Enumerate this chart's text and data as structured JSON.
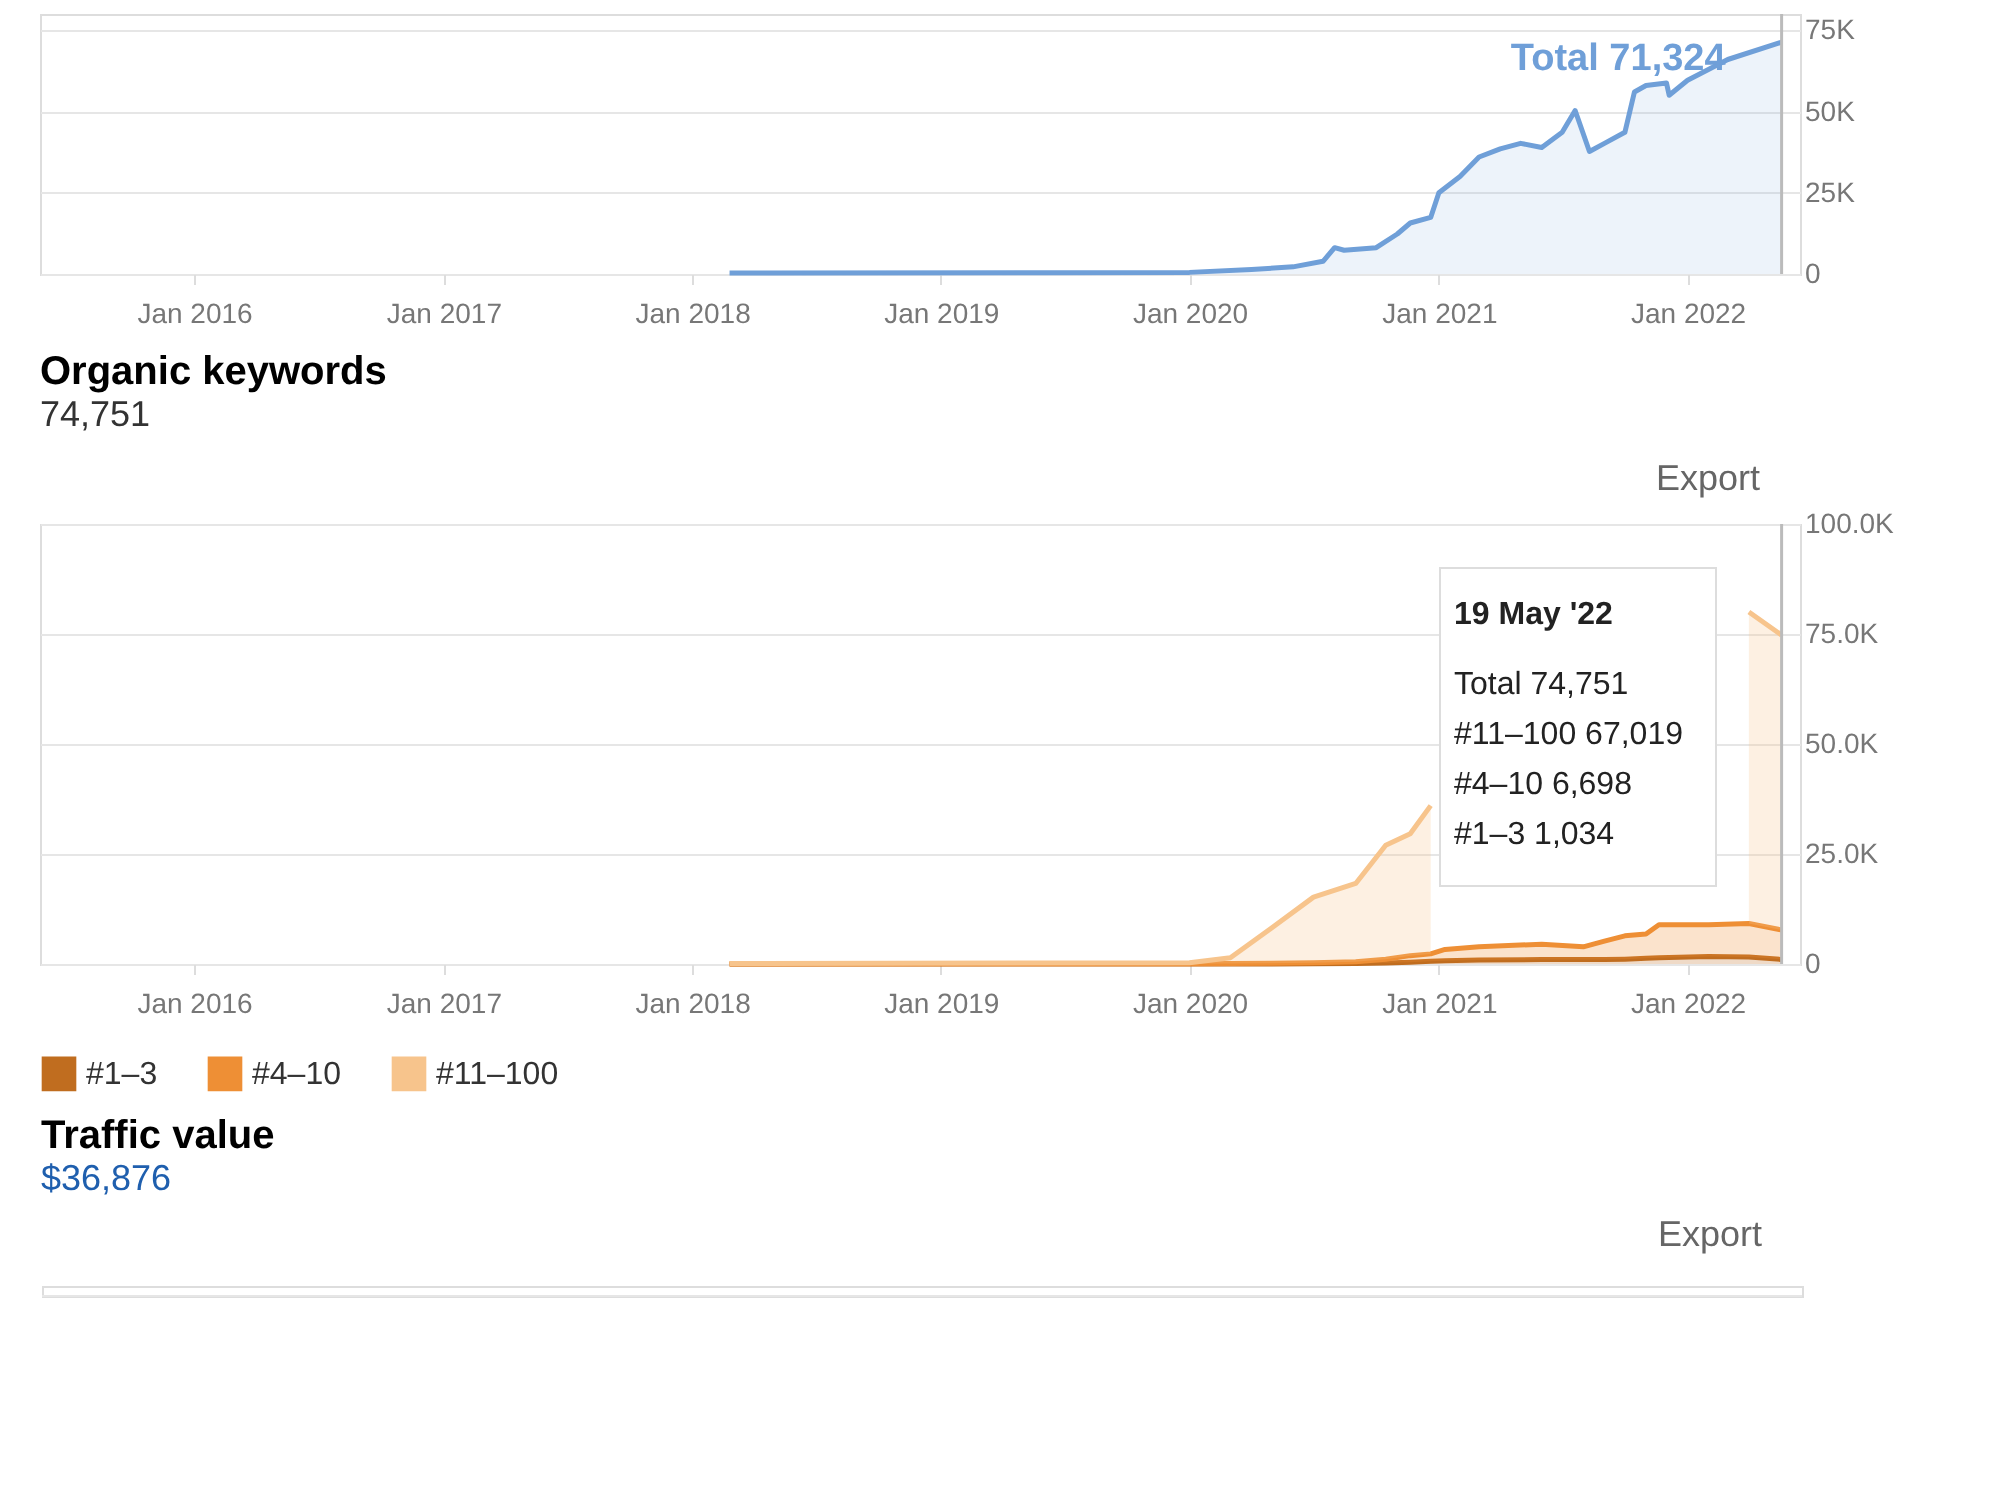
{
  "chart_data": [
    {
      "type": "area",
      "x": [
        "2018-02-25",
        "2019-06-01",
        "2020-01-01",
        "2020-04-01",
        "2020-06-01",
        "2020-07-15",
        "2020-08-01",
        "2020-08-15",
        "2020-10-01",
        "2020-11-01",
        "2020-11-20",
        "2020-12-20",
        "2021-01-01",
        "2021-02-01",
        "2021-03-01",
        "2021-04-01",
        "2021-05-01",
        "2021-06-01",
        "2021-07-01",
        "2021-07-20",
        "2021-08-10",
        "2021-09-01",
        "2021-10-01",
        "2021-10-15",
        "2021-11-01",
        "2021-12-01",
        "2021-12-05",
        "2022-01-01",
        "2022-03-01",
        "2022-05-19"
      ],
      "series": [
        {
          "color": "#6f9fd8",
          "values": [
            300,
            400,
            500,
            1400,
            2200,
            3900,
            8100,
            7300,
            8100,
            12300,
            15700,
            17400,
            25000,
            30000,
            36000,
            38500,
            40200,
            38900,
            43600,
            50300,
            37700,
            40200,
            43600,
            56000,
            58000,
            58800,
            55000,
            59600,
            66000,
            71324
          ]
        }
      ],
      "xlim": [
        "2015-05-20",
        "2022-06-15"
      ],
      "xticks": [
        {
          "value": "2016-01",
          "label": "Jan 2016"
        },
        {
          "value": "2017-01",
          "label": "Jan 2017"
        },
        {
          "value": "2018-01",
          "label": "Jan 2018"
        },
        {
          "value": "2019-01",
          "label": "Jan 2019"
        },
        {
          "value": "2020-01",
          "label": "Jan 2020"
        },
        {
          "value": "2021-01",
          "label": "Jan 2021"
        },
        {
          "value": "2022-01",
          "label": "Jan 2022"
        }
      ],
      "ylim": [
        0,
        80000
      ],
      "yticks": [
        0,
        {
          "value": 25000,
          "label": "25K"
        },
        {
          "value": 50000,
          "label": "50K"
        },
        {
          "value": 75000,
          "label": "75K"
        }
      ],
      "grid": "y",
      "ref_lines": [
        {
          "axis": "x",
          "value": "2022-05-19"
        }
      ],
      "annotations": [
        {
          "text": "Total 71,324",
          "x": "2022-05-19",
          "y": 71324
        }
      ]
    },
    {
      "type": "area",
      "title": "Organic keywords",
      "subtitle": "74,751",
      "stacked": true,
      "x": [
        "2018-02-25",
        "2020-01-01",
        "2020-03-01",
        "2020-05-01",
        "2020-07-01",
        "2020-09-01",
        "2020-10-15",
        "2020-11-20",
        "2020-12-20",
        "2021-01-10",
        "2021-03-01",
        "2021-06-01",
        "2021-08-01",
        "2021-09-01",
        "2021-10-01",
        "2021-11-01",
        "2021-11-20",
        "2022-02-01",
        "2022-04-01",
        "2022-05-19"
      ],
      "series": [
        {
          "name": "#1–3",
          "color": "#c06d1f",
          "values": [
            0,
            0,
            0,
            0,
            50,
            100,
            200,
            400,
            600,
            750,
            900,
            1000,
            1000,
            1000,
            1100,
            1300,
            1400,
            1700,
            1600,
            1034
          ]
        },
        {
          "name": "#4–10",
          "color": "#ee8f35",
          "values": [
            0,
            50,
            100,
            150,
            250,
            400,
            900,
            1500,
            1700,
            2550,
            3000,
            3500,
            2900,
            4200,
            5300,
            5500,
            7500,
            7200,
            7600,
            6698
          ]
        },
        {
          "name": "#11–100",
          "color": "#f7c48c",
          "values": [
            100,
            250,
            1300,
            8100,
            14900,
            17800,
            25900,
            27700,
            33700,
            null,
            null,
            null,
            null,
            null,
            null,
            null,
            null,
            null,
            70800,
            67019
          ]
        }
      ],
      "xlim": [
        "2015-05-20",
        "2022-06-15"
      ],
      "xticks": [
        {
          "value": "2016-01",
          "label": "Jan 2016"
        },
        {
          "value": "2017-01",
          "label": "Jan 2017"
        },
        {
          "value": "2018-01",
          "label": "Jan 2018"
        },
        {
          "value": "2019-01",
          "label": "Jan 2019"
        },
        {
          "value": "2020-01",
          "label": "Jan 2020"
        },
        {
          "value": "2021-01",
          "label": "Jan 2021"
        },
        {
          "value": "2022-01",
          "label": "Jan 2022"
        }
      ],
      "ylim": [
        0,
        100000
      ],
      "yticks": [
        0,
        {
          "value": 25000,
          "label": "25.0K"
        },
        {
          "value": 50000,
          "label": "50.0K"
        },
        {
          "value": 75000,
          "label": "75.0K"
        },
        {
          "value": 100000,
          "label": "100.0K"
        }
      ],
      "grid": "y",
      "legend": "bottom left",
      "ref_lines": [
        {
          "axis": "x",
          "value": "2022-05-19"
        }
      ],
      "annotations": [
        "Export",
        "19 May '22",
        "Total 74,751",
        "#11–100 67,019",
        "#4–10 6,698",
        "#1–3 1,034"
      ]
    },
    {
      "type": "other",
      "title": "Traffic value",
      "subtitle": "$36,876",
      "annotations": [
        "Export"
      ]
    }
  ]
}
